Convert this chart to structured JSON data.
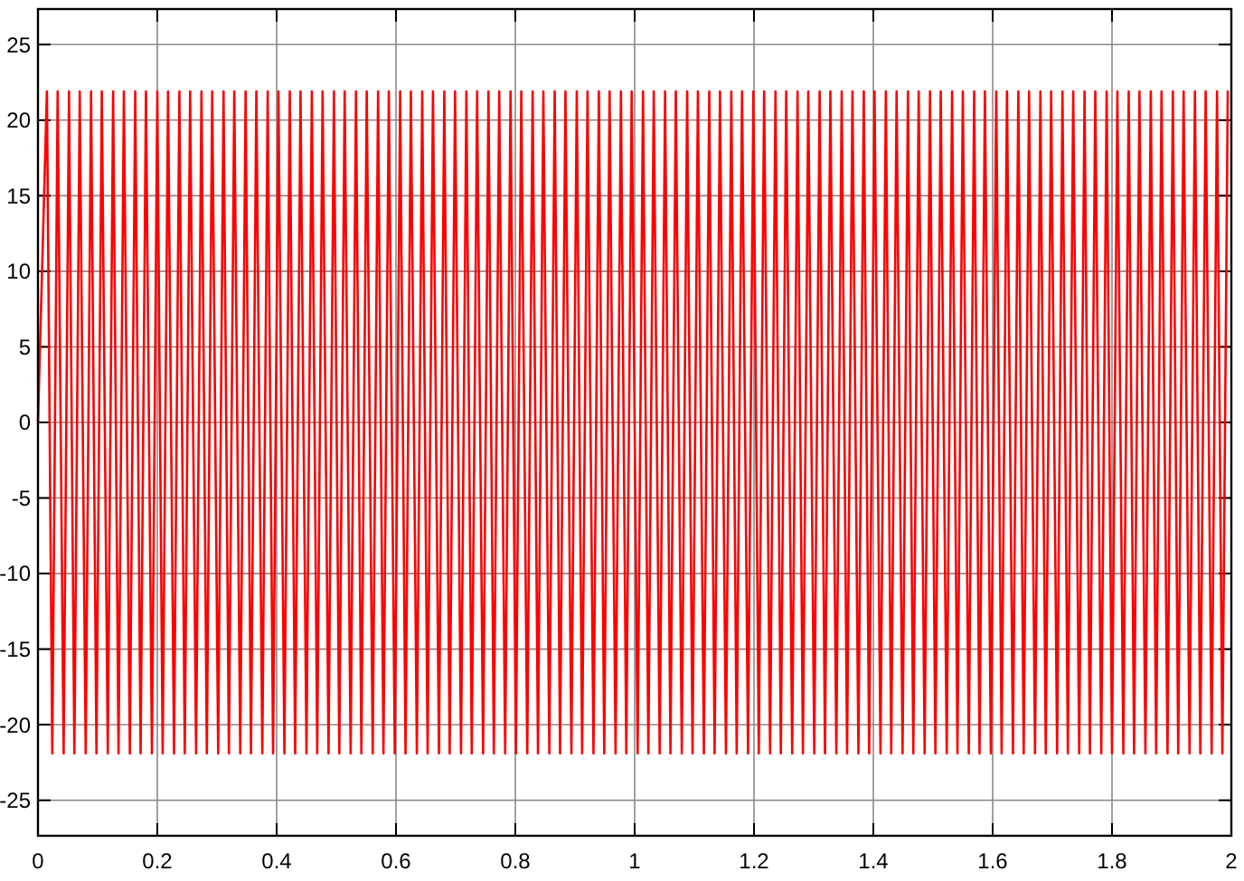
{
  "chart_data": {
    "type": "line",
    "xlim": [
      0,
      2
    ],
    "ylim": [
      -27.35,
      27.35
    ],
    "xticks": [
      0,
      0.2,
      0.4,
      0.6,
      0.8,
      1,
      1.2,
      1.4,
      1.6,
      1.8,
      2
    ],
    "yticks": [
      -25,
      -20,
      -15,
      -10,
      -5,
      0,
      5,
      10,
      15,
      20,
      25
    ],
    "grid": true,
    "series": [
      {
        "color": "#ff0000",
        "x": [
          0,
          0.015,
          0.024,
          0.033,
          0.043,
          0.052,
          0.061,
          0.07,
          0.08,
          0.089,
          0.098,
          0.107,
          0.117,
          0.126,
          0.135,
          0.144,
          0.154,
          0.163,
          0.172,
          0.181,
          0.191,
          0.2,
          0.209,
          0.218,
          0.228,
          0.237,
          0.246,
          0.255,
          0.265,
          0.274,
          0.283,
          0.292,
          0.302,
          0.311,
          0.32,
          0.329,
          0.339,
          0.348,
          0.357,
          0.366,
          0.376,
          0.385,
          0.394,
          0.403,
          0.413,
          0.422,
          0.431,
          0.44,
          0.45,
          0.459,
          0.468,
          0.477,
          0.487,
          0.496,
          0.505,
          0.514,
          0.524,
          0.533,
          0.542,
          0.551,
          0.561,
          0.57,
          0.579,
          0.588,
          0.598,
          0.607,
          0.616,
          0.625,
          0.635,
          0.644,
          0.653,
          0.662,
          0.672,
          0.681,
          0.69,
          0.699,
          0.709,
          0.718,
          0.727,
          0.736,
          0.746,
          0.755,
          0.764,
          0.773,
          0.783,
          0.792,
          0.801,
          0.81,
          0.82,
          0.829,
          0.838,
          0.847,
          0.857,
          0.866,
          0.875,
          0.884,
          0.894,
          0.903,
          0.912,
          0.921,
          0.931,
          0.94,
          0.949,
          0.958,
          0.968,
          0.977,
          0.986,
          0.995,
          1.005,
          1.014,
          1.023,
          1.032,
          1.042,
          1.051,
          1.06,
          1.069,
          1.079,
          1.088,
          1.097,
          1.106,
          1.116,
          1.125,
          1.134,
          1.143,
          1.153,
          1.162,
          1.171,
          1.18,
          1.19,
          1.199,
          1.208,
          1.217,
          1.227,
          1.236,
          1.245,
          1.254,
          1.264,
          1.273,
          1.282,
          1.291,
          1.301,
          1.31,
          1.319,
          1.328,
          1.338,
          1.347,
          1.356,
          1.365,
          1.375,
          1.384,
          1.393,
          1.402,
          1.412,
          1.421,
          1.43,
          1.439,
          1.449,
          1.458,
          1.467,
          1.476,
          1.486,
          1.495,
          1.504,
          1.513,
          1.523,
          1.532,
          1.541,
          1.55,
          1.56,
          1.569,
          1.578,
          1.587,
          1.597,
          1.606,
          1.615,
          1.624,
          1.634,
          1.643,
          1.652,
          1.661,
          1.671,
          1.68,
          1.689,
          1.698,
          1.708,
          1.717,
          1.726,
          1.735,
          1.745,
          1.754,
          1.763,
          1.772,
          1.782,
          1.791,
          1.8,
          1.809,
          1.819,
          1.828,
          1.837,
          1.846,
          1.856,
          1.865,
          1.874,
          1.883,
          1.893,
          1.902,
          1.911,
          1.92,
          1.93,
          1.939,
          1.948,
          1.957,
          1.967,
          1.976,
          1.985,
          1.994
        ],
        "values": [
          0,
          21.9,
          -21.9,
          21.9,
          -21.9,
          21.9,
          -21.9,
          21.9,
          -21.9,
          21.9,
          -21.9,
          21.9,
          -21.9,
          21.9,
          -21.9,
          21.9,
          -21.9,
          21.9,
          -21.9,
          21.9,
          -21.9,
          21.9,
          -21.9,
          21.9,
          -21.9,
          21.9,
          -21.9,
          21.9,
          -21.9,
          21.9,
          -21.9,
          21.9,
          -21.9,
          21.9,
          -21.9,
          21.9,
          -21.9,
          21.9,
          -21.9,
          21.9,
          -21.9,
          21.9,
          -21.9,
          21.9,
          -21.9,
          21.9,
          -21.9,
          21.9,
          -21.9,
          21.9,
          -21.9,
          21.9,
          -21.9,
          21.9,
          -21.9,
          21.9,
          -21.9,
          21.9,
          -21.9,
          21.9,
          -21.9,
          21.9,
          -21.9,
          21.9,
          -21.9,
          21.9,
          -21.9,
          21.9,
          -21.9,
          21.9,
          -21.9,
          21.9,
          -21.9,
          21.9,
          -21.9,
          21.9,
          -21.9,
          21.9,
          -21.9,
          21.9,
          -21.9,
          21.9,
          -21.9,
          21.9,
          -21.9,
          21.9,
          -21.9,
          21.9,
          -21.9,
          21.9,
          -21.9,
          21.9,
          -21.9,
          21.9,
          -21.9,
          21.9,
          -21.9,
          21.9,
          -21.9,
          21.9,
          -21.9,
          21.9,
          -21.9,
          21.9,
          -21.9,
          21.9,
          -21.9,
          21.9,
          -21.9,
          21.9,
          -21.9,
          21.9,
          -21.9,
          21.9,
          -21.9,
          21.9,
          -21.9,
          21.9,
          -21.9,
          21.9,
          -21.9,
          21.9,
          -21.9,
          21.9,
          -21.9,
          21.9,
          -21.9,
          21.9,
          -21.9,
          21.9,
          -21.9,
          21.9,
          -21.9,
          21.9,
          -21.9,
          21.9,
          -21.9,
          21.9,
          -21.9,
          21.9,
          -21.9,
          21.9,
          -21.9,
          21.9,
          -21.9,
          21.9,
          -21.9,
          21.9,
          -21.9,
          21.9,
          -21.9,
          21.9,
          -21.9,
          21.9,
          -21.9,
          21.9,
          -21.9,
          21.9,
          -21.9,
          21.9,
          -21.9,
          21.9,
          -21.9,
          21.9,
          -21.9,
          21.9,
          -21.9,
          21.9,
          -21.9,
          21.9,
          -21.9,
          21.9,
          -21.9,
          21.9,
          -21.9,
          21.9,
          -21.9,
          21.9,
          -21.9,
          21.9,
          -21.9,
          21.9,
          -21.9,
          21.9,
          -21.9,
          21.9,
          -21.9,
          21.9,
          -21.9,
          21.9,
          -21.9,
          21.9,
          -21.9,
          21.9,
          -21.9,
          21.9,
          -21.9,
          21.9,
          -21.9,
          21.9,
          -21.9,
          21.9,
          -21.9,
          21.9,
          -21.9,
          21.9,
          -21.9,
          21.9,
          -21.9,
          21.9,
          -21.9,
          21.9,
          -21.9,
          21.9,
          -21.9,
          21.9
        ]
      }
    ]
  }
}
